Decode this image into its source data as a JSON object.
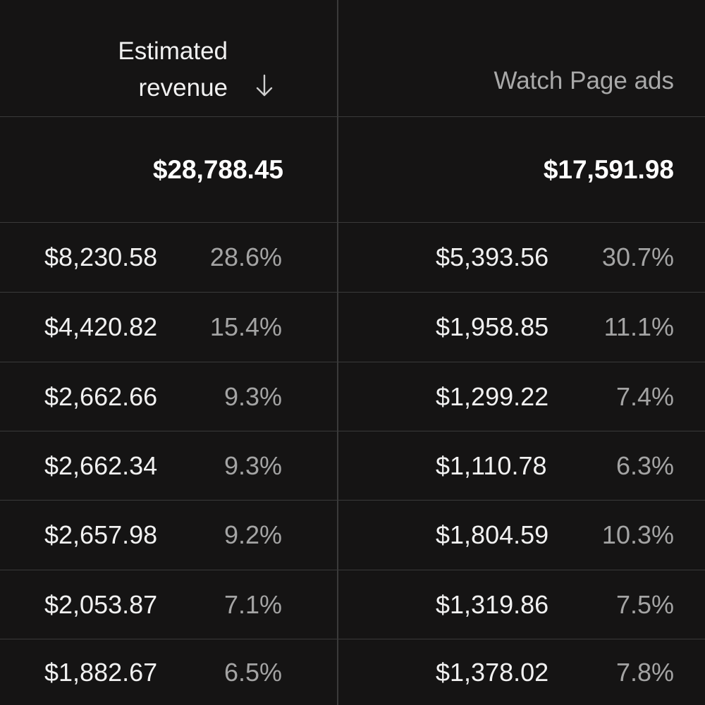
{
  "header": {
    "revenue_line1": "Estimated",
    "revenue_line2": "revenue",
    "watch_page_ads": "Watch Page ads"
  },
  "totals": {
    "estimated_revenue": "$28,788.45",
    "watch_page_ads": "$17,591.98"
  },
  "rows": [
    {
      "revenue": "$8,230.58",
      "revenue_pct": "28.6%",
      "ads": "$5,393.56",
      "ads_pct": "30.7%"
    },
    {
      "revenue": "$4,420.82",
      "revenue_pct": "15.4%",
      "ads": "$1,958.85",
      "ads_pct": "11.1%"
    },
    {
      "revenue": "$2,662.66",
      "revenue_pct": "9.3%",
      "ads": "$1,299.22",
      "ads_pct": "7.4%"
    },
    {
      "revenue": "$2,662.34",
      "revenue_pct": "9.3%",
      "ads": "$1,110.78",
      "ads_pct": "6.3%"
    },
    {
      "revenue": "$2,657.98",
      "revenue_pct": "9.2%",
      "ads": "$1,804.59",
      "ads_pct": "10.3%"
    },
    {
      "revenue": "$2,053.87",
      "revenue_pct": "7.1%",
      "ads": "$1,319.86",
      "ads_pct": "7.5%"
    },
    {
      "revenue": "$1,882.67",
      "revenue_pct": "6.5%",
      "ads": "$1,378.02",
      "ads_pct": "7.8%"
    }
  ],
  "icons": {
    "sort": "arrow-down-icon"
  },
  "colors": {
    "background": "#151414",
    "divider": "#3a3a3a",
    "primary_text": "#f1f1f1",
    "secondary_text": "#a4a4a4"
  }
}
